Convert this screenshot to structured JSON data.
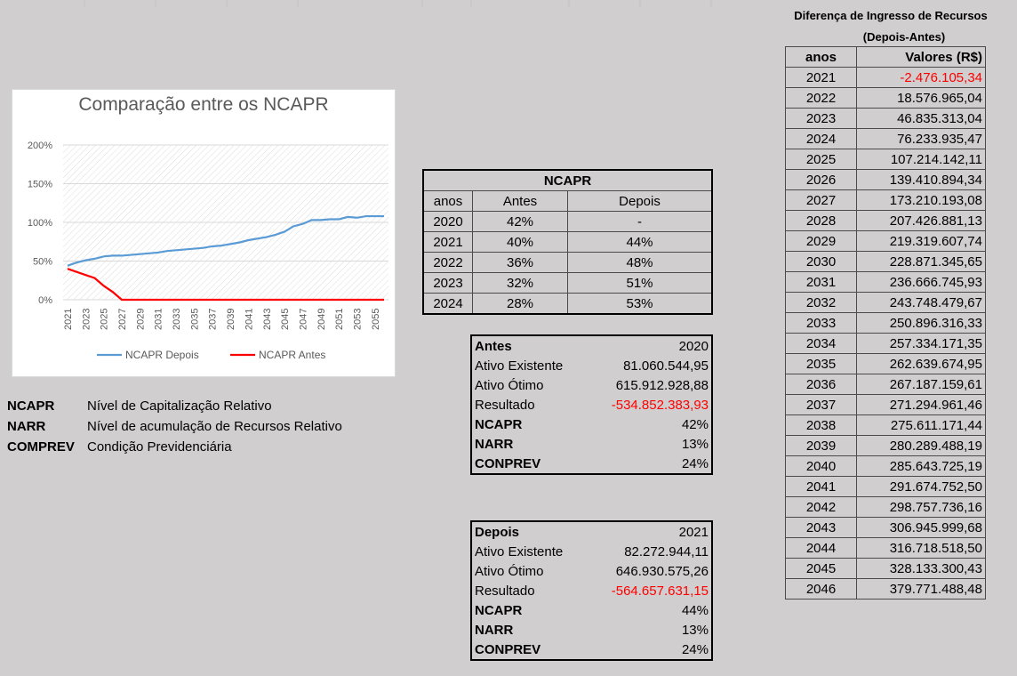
{
  "chart_data": {
    "type": "line",
    "title": "Comparação entre os NCAPR",
    "xlabel": "",
    "ylabel": "",
    "ylim": [
      0,
      200
    ],
    "yticks": [
      "200%",
      "150%",
      "100%",
      "50%",
      "0%"
    ],
    "x": [
      2021,
      2022,
      2023,
      2024,
      2025,
      2026,
      2027,
      2028,
      2029,
      2030,
      2031,
      2032,
      2033,
      2034,
      2035,
      2036,
      2037,
      2038,
      2039,
      2040,
      2041,
      2042,
      2043,
      2044,
      2045,
      2046,
      2047,
      2048,
      2049,
      2050,
      2051,
      2052,
      2053,
      2054,
      2055,
      2056
    ],
    "xtick_labels": [
      "2021",
      "2023",
      "2025",
      "2027",
      "2029",
      "2031",
      "2033",
      "2035",
      "2037",
      "2039",
      "2041",
      "2043",
      "2045",
      "2047",
      "2049",
      "2051",
      "2053",
      "2055"
    ],
    "series": [
      {
        "name": "NCAPR Depois",
        "color": "#5b9bd5",
        "values": [
          44,
          48,
          51,
          53,
          56,
          57,
          57,
          58,
          59,
          60,
          61,
          63,
          64,
          65,
          66,
          67,
          69,
          70,
          72,
          74,
          77,
          79,
          81,
          84,
          88,
          95,
          98,
          103,
          103,
          104,
          104,
          107,
          106,
          108,
          108,
          108
        ]
      },
      {
        "name": "NCAPR Antes",
        "color": "#ff0000",
        "values": [
          40,
          36,
          32,
          28,
          18,
          10,
          0,
          0,
          0,
          0,
          0,
          0,
          0,
          0,
          0,
          0,
          0,
          0,
          0,
          0,
          0,
          0,
          0,
          0,
          0,
          0,
          0,
          0,
          0,
          0,
          0,
          0,
          0,
          0,
          0,
          0
        ]
      }
    ],
    "legend": "bottom"
  },
  "glossary": [
    {
      "abbr": "NCAPR",
      "desc": "Nível de Capitalização Relativo"
    },
    {
      "abbr": "NARR",
      "desc": "Nível de acumulação de Recursos Relativo"
    },
    {
      "abbr": "COMPREV",
      "desc": "Condição Previdenciária"
    }
  ],
  "ncapr_table": {
    "title": "NCAPR",
    "headers": [
      "anos",
      "Antes",
      "Depois"
    ],
    "rows": [
      [
        "2020",
        "42%",
        "-"
      ],
      [
        "2021",
        "40%",
        "44%"
      ],
      [
        "2022",
        "36%",
        "48%"
      ],
      [
        "2023",
        "32%",
        "51%"
      ],
      [
        "2024",
        "28%",
        "53%"
      ]
    ]
  },
  "antes": {
    "title": "Antes",
    "year": "2020",
    "rows": [
      {
        "label": "Ativo Existente",
        "value": "81.060.544,95",
        "bold": false,
        "neg": false
      },
      {
        "label": "Ativo Ótimo",
        "value": "615.912.928,88",
        "bold": false,
        "neg": false
      },
      {
        "label": "Resultado",
        "value": "-534.852.383,93",
        "bold": false,
        "neg": true
      },
      {
        "label": "NCAPR",
        "value": "42%",
        "bold": true,
        "neg": false
      },
      {
        "label": "NARR",
        "value": "13%",
        "bold": true,
        "neg": false
      },
      {
        "label": "CONPREV",
        "value": "24%",
        "bold": true,
        "neg": false
      }
    ]
  },
  "depois": {
    "title": "Depois",
    "year": "2021",
    "rows": [
      {
        "label": "Ativo Existente",
        "value": "82.272.944,11",
        "bold": false,
        "neg": false
      },
      {
        "label": "Ativo Ótimo",
        "value": "646.930.575,26",
        "bold": false,
        "neg": false
      },
      {
        "label": "Resultado",
        "value": "-564.657.631,15",
        "bold": false,
        "neg": true
      },
      {
        "label": "NCAPR",
        "value": "44%",
        "bold": true,
        "neg": false
      },
      {
        "label": "NARR",
        "value": "13%",
        "bold": true,
        "neg": false
      },
      {
        "label": "CONPREV",
        "value": "24%",
        "bold": true,
        "neg": false
      }
    ]
  },
  "diff": {
    "title1": "Diferença de Ingresso de Recursos",
    "title2": "(Depois-Antes)",
    "headers": [
      "anos",
      "Valores (R$)"
    ],
    "rows": [
      [
        "2021",
        "-2.476.105,34"
      ],
      [
        "2022",
        "18.576.965,04"
      ],
      [
        "2023",
        "46.835.313,04"
      ],
      [
        "2024",
        "76.233.935,47"
      ],
      [
        "2025",
        "107.214.142,11"
      ],
      [
        "2026",
        "139.410.894,34"
      ],
      [
        "2027",
        "173.210.193,08"
      ],
      [
        "2028",
        "207.426.881,13"
      ],
      [
        "2029",
        "219.319.607,74"
      ],
      [
        "2030",
        "228.871.345,65"
      ],
      [
        "2031",
        "236.666.745,93"
      ],
      [
        "2032",
        "243.748.479,67"
      ],
      [
        "2033",
        "250.896.316,33"
      ],
      [
        "2034",
        "257.334.171,35"
      ],
      [
        "2035",
        "262.639.674,95"
      ],
      [
        "2036",
        "267.187.159,61"
      ],
      [
        "2037",
        "271.294.961,46"
      ],
      [
        "2038",
        "275.611.171,44"
      ],
      [
        "2039",
        "280.289.488,19"
      ],
      [
        "2040",
        "285.643.725,19"
      ],
      [
        "2041",
        "291.674.752,50"
      ],
      [
        "2042",
        "298.757.736,16"
      ],
      [
        "2043",
        "306.945.999,68"
      ],
      [
        "2044",
        "316.718.518,50"
      ],
      [
        "2045",
        "328.133.300,43"
      ],
      [
        "2046",
        "379.771.488,48"
      ]
    ]
  }
}
